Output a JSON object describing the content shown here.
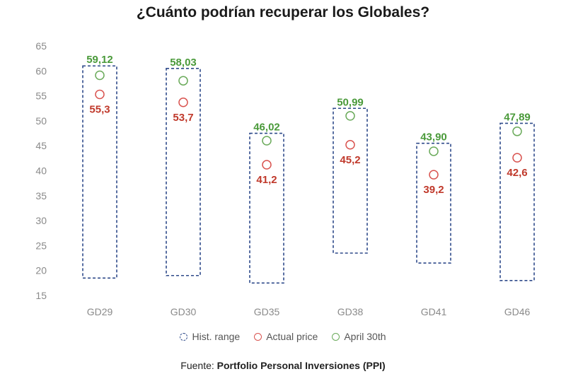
{
  "chart_data": {
    "type": "range-dot",
    "title": "¿Cuánto podrían recuperar los Globales?",
    "categories": [
      "GD29",
      "GD30",
      "GD35",
      "GD38",
      "GD41",
      "GD46"
    ],
    "ylim": [
      15,
      65
    ],
    "yticks": [
      15,
      20,
      25,
      30,
      35,
      40,
      45,
      50,
      55,
      60,
      65
    ],
    "series": [
      {
        "name": "Hist. range",
        "kind": "range",
        "low": [
          18.5,
          19.0,
          17.5,
          23.5,
          21.5,
          18.0
        ],
        "high": [
          61.0,
          60.5,
          47.5,
          52.5,
          45.5,
          49.5
        ],
        "color": "#2e4a8a"
      },
      {
        "name": "Actual price",
        "kind": "dot",
        "values": [
          55.3,
          53.7,
          41.2,
          45.2,
          39.2,
          42.6
        ],
        "labels": [
          "55,3",
          "53,7",
          "41,2",
          "45,2",
          "39,2",
          "42,6"
        ],
        "color": "#d9534f"
      },
      {
        "name": "April 30th",
        "kind": "dot",
        "values": [
          59.12,
          58.03,
          46.02,
          50.99,
          43.9,
          47.89
        ],
        "labels": [
          "59,12",
          "58,03",
          "46,02",
          "50,99",
          "43,90",
          "47,89"
        ],
        "color": "#6aaa5a"
      }
    ],
    "legend_position": "bottom",
    "grid": false
  },
  "source": {
    "prefix": "Fuente:",
    "name": "Portfolio Personal Inversiones (PPI)"
  }
}
